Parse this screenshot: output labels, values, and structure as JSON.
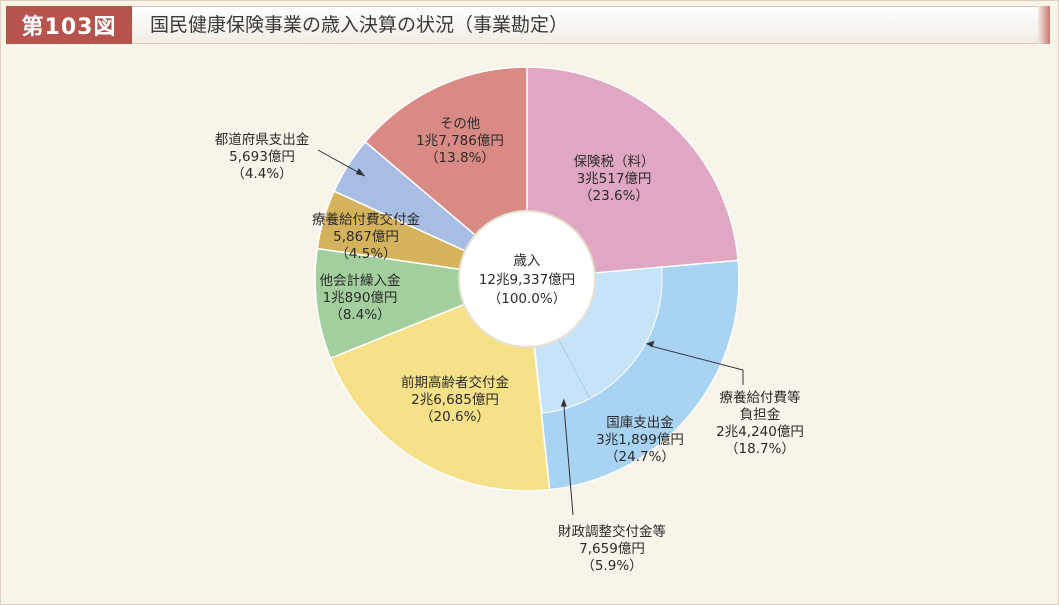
{
  "header": {
    "figure_label": "第103図",
    "title": "国民健康保険事業の歳入決算の状況（事業勘定）"
  },
  "chart_data": {
    "type": "pie",
    "title": "国民健康保険事業の歳入決算の状況（事業勘定）",
    "center_label": [
      "歳入",
      "12兆9,337億円",
      "（100.0%）"
    ],
    "slices": [
      {
        "name": "保険税（料）",
        "amount": "3兆517億円",
        "percent": 23.6,
        "color": "#e0a7c3",
        "label": [
          "保険税（料）",
          "3兆517億円",
          "（23.6%）"
        ]
      },
      {
        "name": "国庫支出金",
        "amount": "3兆1,899億円",
        "percent": 24.7,
        "color": "#a9d3f3",
        "label": [
          "国庫支出金",
          "3兆1,899億円",
          "（24.7%）"
        ],
        "sub": [
          {
            "name": "療養給付費等負担金",
            "amount": "2兆4,240億円",
            "percent": 18.7,
            "color": "#c6e3f8",
            "label": [
              "療養給付費等",
              "負担金",
              "2兆4,240億円",
              "（18.7%）"
            ]
          },
          {
            "name": "財政調整交付金等",
            "amount": "7,659億円",
            "percent": 5.9,
            "color": "#c6e3f8",
            "label": [
              "財政調整交付金等",
              "7,659億円",
              "（5.9%）"
            ]
          }
        ]
      },
      {
        "name": "前期高齢者交付金",
        "amount": "2兆6,685億円",
        "percent": 20.6,
        "color": "#f6e189",
        "label": [
          "前期高齢者交付金",
          "2兆6,685億円",
          "（20.6%）"
        ]
      },
      {
        "name": "他会計繰入金",
        "amount": "1兆890億円",
        "percent": 8.4,
        "color": "#a3cf9f",
        "label": [
          "他会計繰入金",
          "1兆890億円",
          "（8.4%）"
        ]
      },
      {
        "name": "療養給付費交付金",
        "amount": "5,867億円",
        "percent": 4.5,
        "color": "#d5b35c",
        "label": [
          "療養給付費交付金",
          "5,867億円",
          "（4.5%）"
        ]
      },
      {
        "name": "都道府県支出金",
        "amount": "5,693億円",
        "percent": 4.4,
        "color": "#a7bde3",
        "label": [
          "都道府県支出金",
          "5,693億円",
          "（4.4%）"
        ]
      },
      {
        "name": "その他",
        "amount": "1兆7,786億円",
        "percent": 13.8,
        "color": "#d98a85",
        "label": [
          "その他",
          "1兆7,786億円",
          "（13.8%）"
        ]
      }
    ]
  }
}
